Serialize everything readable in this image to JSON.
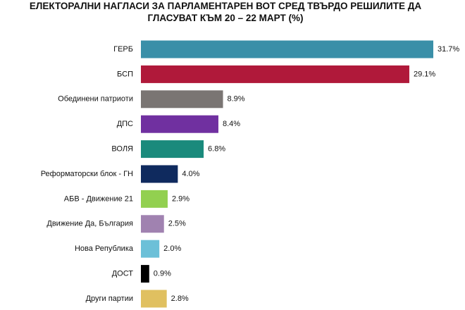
{
  "chart_data": {
    "type": "bar",
    "orientation": "horizontal",
    "title": "ЕЛЕКТОРАЛНИ НАГЛАСИ ЗА ПАРЛАМЕНТАРЕН ВОТ СРЕД ТВЪРДО РЕШИЛИТЕ ДА ГЛАСУВАТ КЪМ 20 – 22 МАРТ (%)",
    "categories": [
      "ГЕРБ",
      "БСП",
      "Обединени патриоти",
      "ДПС",
      "ВОЛЯ",
      "Реформаторски блок - ГН",
      "АБВ - Движение 21",
      "Движение Да, България",
      "Нова Република",
      "ДОСТ",
      "Други партии"
    ],
    "values": [
      31.7,
      29.1,
      8.9,
      8.4,
      6.8,
      4.0,
      2.9,
      2.5,
      2.0,
      0.9,
      2.8
    ],
    "value_labels": [
      "31.7%",
      "29.1%",
      "8.9%",
      "8.4%",
      "6.8%",
      "4.0%",
      "2.9%",
      "2.5%",
      "2.0%",
      "0.9%",
      "2.8%"
    ],
    "colors": [
      "#3a8fa8",
      "#b0193a",
      "#7a7573",
      "#7030a0",
      "#1a8a7c",
      "#0f2a5e",
      "#92d050",
      "#a082b0",
      "#6cc0d8",
      "#000000",
      "#e0c060"
    ]
  }
}
